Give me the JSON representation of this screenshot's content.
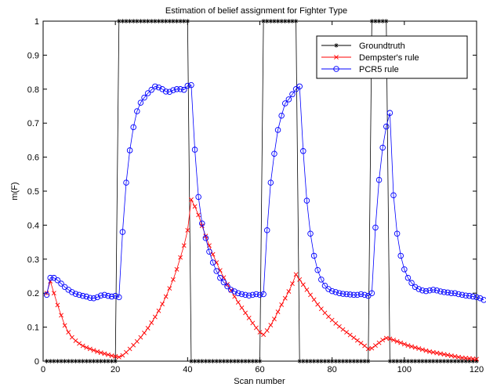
{
  "chart_data": {
    "type": "line",
    "title": "Estimation of belief assignment for Fighter Type",
    "xlabel": "Scan number",
    "ylabel": "m(F)",
    "xlim": [
      0,
      120
    ],
    "ylim": [
      0,
      1
    ],
    "xticks": [
      0,
      20,
      40,
      60,
      80,
      100,
      120
    ],
    "yticks": [
      0,
      0.1,
      0.2,
      0.3,
      0.4,
      0.5,
      0.6,
      0.7,
      0.8,
      0.9,
      1
    ],
    "xtick_labels": [
      "0",
      "20",
      "40",
      "60",
      "80",
      "100",
      "120"
    ],
    "ytick_labels": [
      "0",
      "0.1",
      "0.2",
      "0.3",
      "0.4",
      "0.5",
      "0.6",
      "0.7",
      "0.8",
      "0.9",
      "1"
    ],
    "grid": false,
    "legend_position": "top-right",
    "series": [
      {
        "name": "Groundtruth",
        "color": "#000000",
        "marker": "star",
        "high_intervals": [
          [
            21,
            40
          ],
          [
            61,
            70
          ],
          [
            91,
            95
          ]
        ],
        "x_start": 1,
        "x_end": 120,
        "low_value": 0,
        "high_value": 1
      },
      {
        "name": "Dempster's rule",
        "color": "#ff0000",
        "marker": "x",
        "x_start": 1,
        "values": [
          0.2,
          0.235,
          0.2,
          0.165,
          0.135,
          0.105,
          0.085,
          0.07,
          0.06,
          0.052,
          0.045,
          0.04,
          0.036,
          0.032,
          0.028,
          0.025,
          0.022,
          0.019,
          0.016,
          0.014,
          0.012,
          0.017,
          0.026,
          0.036,
          0.047,
          0.058,
          0.07,
          0.083,
          0.097,
          0.113,
          0.13,
          0.148,
          0.168,
          0.19,
          0.214,
          0.24,
          0.27,
          0.305,
          0.34,
          0.385,
          0.475,
          0.455,
          0.43,
          0.398,
          0.368,
          0.34,
          0.314,
          0.29,
          0.267,
          0.246,
          0.226,
          0.208,
          0.19,
          0.173,
          0.157,
          0.142,
          0.127,
          0.112,
          0.098,
          0.085,
          0.078,
          0.09,
          0.106,
          0.124,
          0.145,
          0.166,
          0.185,
          0.205,
          0.228,
          0.255,
          0.24,
          0.225,
          0.21,
          0.195,
          0.181,
          0.167,
          0.154,
          0.142,
          0.131,
          0.121,
          0.111,
          0.102,
          0.093,
          0.085,
          0.077,
          0.069,
          0.061,
          0.053,
          0.045,
          0.036,
          0.038,
          0.046,
          0.054,
          0.062,
          0.068,
          0.066,
          0.062,
          0.058,
          0.054,
          0.05,
          0.046,
          0.043,
          0.04,
          0.037,
          0.034,
          0.031,
          0.028,
          0.026,
          0.024,
          0.022,
          0.02,
          0.018,
          0.016,
          0.014,
          0.012,
          0.01,
          0.009,
          0.008,
          0.007,
          0.006
        ]
      },
      {
        "name": "PCR5 rule",
        "color": "#0000ff",
        "marker": "circle",
        "x_start": 1,
        "values": [
          0.195,
          0.245,
          0.245,
          0.238,
          0.228,
          0.218,
          0.21,
          0.203,
          0.198,
          0.195,
          0.192,
          0.19,
          0.186,
          0.185,
          0.188,
          0.193,
          0.195,
          0.192,
          0.19,
          0.192,
          0.188,
          0.38,
          0.525,
          0.62,
          0.688,
          0.735,
          0.76,
          0.775,
          0.788,
          0.798,
          0.808,
          0.805,
          0.8,
          0.793,
          0.792,
          0.797,
          0.8,
          0.8,
          0.798,
          0.81,
          0.812,
          0.622,
          0.483,
          0.405,
          0.362,
          0.322,
          0.29,
          0.265,
          0.245,
          0.232,
          0.22,
          0.21,
          0.205,
          0.2,
          0.197,
          0.195,
          0.193,
          0.195,
          0.197,
          0.195,
          0.197,
          0.385,
          0.525,
          0.61,
          0.68,
          0.722,
          0.758,
          0.77,
          0.785,
          0.8,
          0.808,
          0.618,
          0.472,
          0.375,
          0.31,
          0.268,
          0.24,
          0.222,
          0.212,
          0.206,
          0.203,
          0.2,
          0.198,
          0.197,
          0.196,
          0.195,
          0.195,
          0.197,
          0.195,
          0.192,
          0.2,
          0.393,
          0.533,
          0.628,
          0.69,
          0.73,
          0.488,
          0.375,
          0.31,
          0.27,
          0.245,
          0.23,
          0.218,
          0.212,
          0.208,
          0.206,
          0.208,
          0.21,
          0.208,
          0.205,
          0.203,
          0.202,
          0.2,
          0.2,
          0.197,
          0.195,
          0.193,
          0.192,
          0.19,
          0.188,
          0.185,
          0.18
        ]
      }
    ]
  }
}
